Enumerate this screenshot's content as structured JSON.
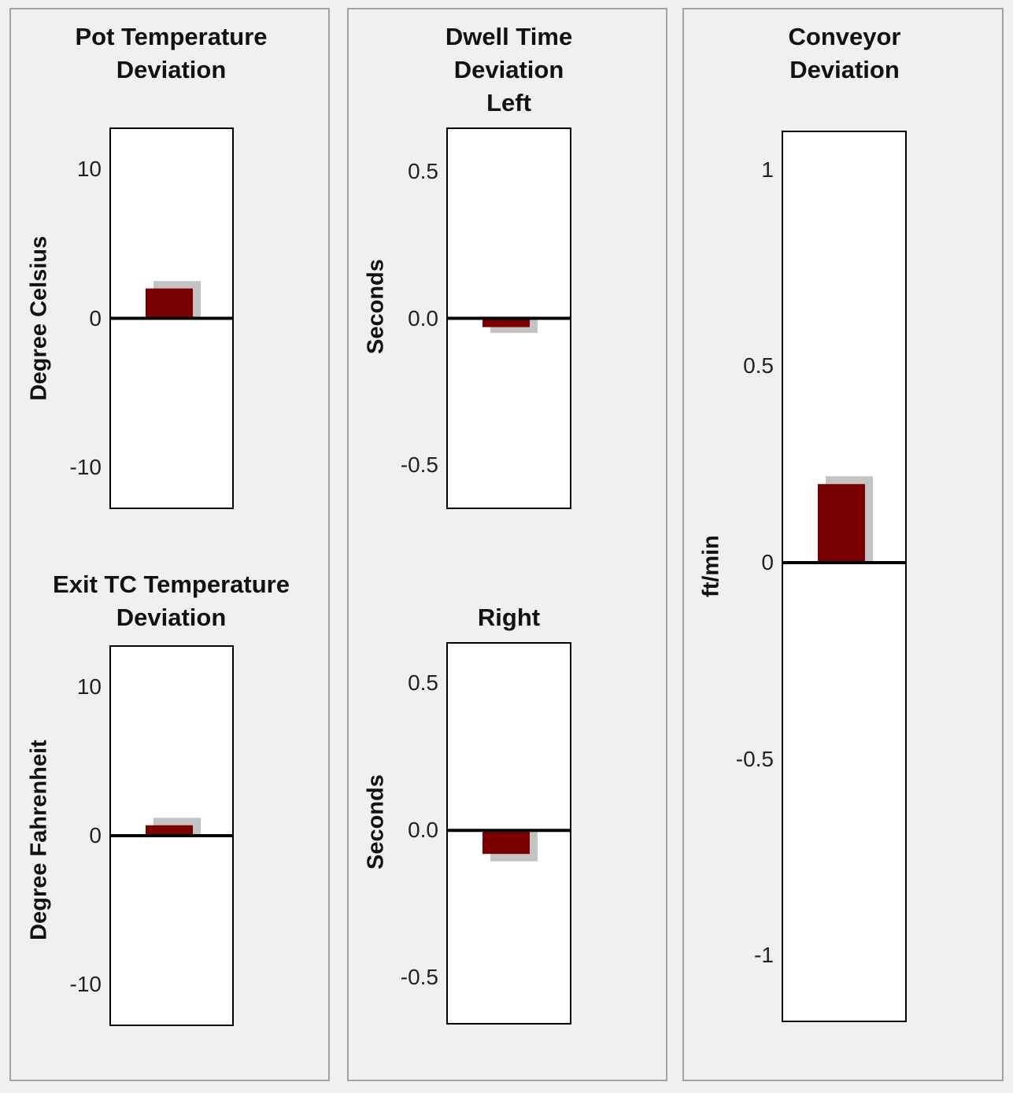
{
  "panels": {
    "pot": {
      "title_line1": "Pot Temperature",
      "title_line2": "Deviation"
    },
    "dwell": {
      "title_line1": "Dwell Time",
      "title_line2": "Deviation",
      "title_line3": "Left"
    },
    "conveyor": {
      "title_line1": "Conveyor",
      "title_line2": "Deviation"
    }
  },
  "colors": {
    "bar": "#7a0000",
    "shadow": "#c3c3c3",
    "zero_line": "#000000",
    "plot_bg": "#ffffff",
    "panel_bg": "#f0f0f0"
  },
  "chart_data": [
    {
      "id": "pot",
      "type": "bar",
      "title": "Pot Temperature Deviation",
      "ylabel": "Degree Celsius",
      "ylim": [
        -12.8,
        12.8
      ],
      "ticks": [
        "10",
        "0",
        "-10"
      ],
      "tick_values": [
        10,
        0,
        -10
      ],
      "values": [
        2.0
      ],
      "target": 2.5
    },
    {
      "id": "exit",
      "type": "bar",
      "title": "Exit TC Temperature Deviation",
      "title_line1": "Exit TC Temperature",
      "title_line2": "Deviation",
      "ylabel": "Degree Fahrenheit",
      "ylim": [
        -12.8,
        12.8
      ],
      "ticks": [
        "10",
        "0",
        "-10"
      ],
      "tick_values": [
        10,
        0,
        -10
      ],
      "values": [
        0.7
      ],
      "target": 1.2
    },
    {
      "id": "dwell_left",
      "type": "bar",
      "title": "Dwell Time Deviation Left",
      "ylabel": "Seconds",
      "ylim": [
        -0.65,
        0.65
      ],
      "ticks": [
        "0.5",
        "0.0",
        "-0.5"
      ],
      "tick_values": [
        0.5,
        0.0,
        -0.5
      ],
      "values": [
        -0.03
      ],
      "target": -0.05
    },
    {
      "id": "dwell_right",
      "type": "bar",
      "title": "Right",
      "ylabel": "Seconds",
      "ylim": [
        -0.66,
        0.64
      ],
      "ticks": [
        "0.5",
        "0.0",
        "-0.5"
      ],
      "tick_values": [
        0.5,
        0.0,
        -0.5
      ],
      "values": [
        -0.08
      ],
      "target": -0.105
    },
    {
      "id": "conveyor",
      "type": "bar",
      "title": "Conveyor Deviation",
      "ylabel": "ft/min",
      "ylim": [
        -1.17,
        1.1
      ],
      "ticks": [
        "1",
        "0.5",
        "0",
        "-0.5",
        "-1"
      ],
      "tick_values": [
        1,
        0.5,
        0,
        -0.5,
        -1
      ],
      "values": [
        0.2
      ],
      "target": 0.22
    }
  ]
}
